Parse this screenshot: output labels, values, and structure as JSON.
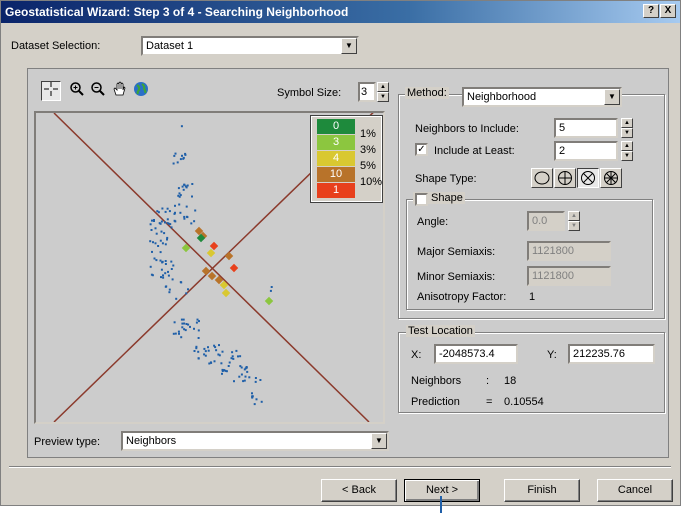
{
  "window": {
    "title": "Geostatistical Wizard: Step 3 of 4 - Searching Neighborhood",
    "help_label": "?",
    "close_label": "X"
  },
  "dataset": {
    "label": "Dataset Selection:",
    "value": "Dataset 1"
  },
  "toolbar": {
    "tools": [
      "select-icon",
      "zoom-in-icon",
      "zoom-out-icon",
      "pan-icon",
      "globe-icon"
    ]
  },
  "symbol_size": {
    "label": "Symbol Size:",
    "value": "3"
  },
  "legend": {
    "colors": [
      "#1e8a3c",
      "#8cc63f",
      "#d9c831",
      "#b8732a",
      "#e8401c"
    ],
    "values": [
      "0",
      "3",
      "4",
      "10",
      "1"
    ],
    "percents": [
      "1%",
      "3%",
      "5%",
      "10%"
    ]
  },
  "method": {
    "title": "Method:",
    "value": "Neighborhood",
    "neighbors_label": "Neighbors to Include:",
    "neighbors_value": "5",
    "include_least_label": "Include at Least:",
    "include_least_checked": true,
    "include_least_value": "2",
    "shape_type_label": "Shape Type:",
    "shape_types": [
      "ellipse-icon",
      "quadrant4-icon",
      "quadrant4-rotated-icon",
      "sector8-icon"
    ],
    "selected_shape": 2
  },
  "shape": {
    "title": "Shape",
    "checked": false,
    "angle_label": "Angle:",
    "angle_value": "0.0",
    "major_label": "Major Semiaxis:",
    "major_value": "1121800",
    "minor_label": "Minor Semiaxis:",
    "minor_value": "1121800",
    "anisotropy_label": "Anisotropy Factor:",
    "anisotropy_value": "1"
  },
  "test_location": {
    "title": "Test Location",
    "x_label": "X:",
    "x_value": "-2048573.4",
    "y_label": "Y:",
    "y_value": "212235.76",
    "neighbors_label": "Neighbors",
    "neighbors_sep": ":",
    "neighbors_value": "18",
    "prediction_label": "Prediction",
    "prediction_sep": "=",
    "prediction_value": "0.10554"
  },
  "preview": {
    "label": "Preview type:",
    "value": "Neighbors"
  },
  "buttons": {
    "back": "< Back",
    "next": "Next >",
    "finish": "Finish",
    "cancel": "Cancel"
  }
}
